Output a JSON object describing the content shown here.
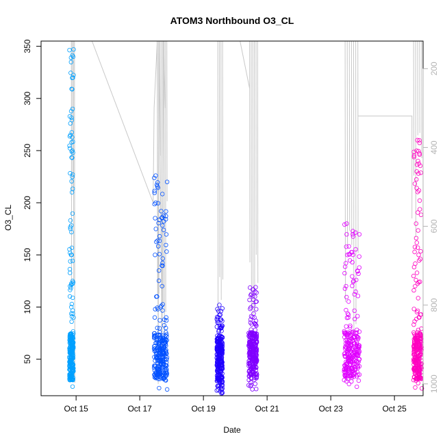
{
  "chart_data": {
    "type": "scatter",
    "title": "ATOM3 Northbound O3_CL",
    "xlabel": "Date",
    "ylabel": "O3_CL",
    "x_ticks": [
      "Oct 15",
      "Oct 17",
      "Oct 19",
      "Oct 21",
      "Oct 23",
      "Oct 25"
    ],
    "y_ticks": [
      50,
      100,
      150,
      200,
      250,
      300,
      350
    ],
    "ylim": [
      15,
      355
    ],
    "xlim_days_oct": [
      13.9,
      25.9
    ],
    "y2_ticks": [
      200,
      400,
      600,
      800,
      1000
    ],
    "y2lim_reversed": [
      130,
      1030
    ],
    "grid": false,
    "marker": "open-circle",
    "series": [
      {
        "color": "#00a0ff",
        "x_range": [
          "Oct 14 19:00",
          "Oct 14 22:00"
        ],
        "y_range": [
          20,
          347
        ],
        "points": [
          [
            14.79,
            40
          ],
          [
            14.8,
            60
          ],
          [
            14.81,
            120
          ],
          [
            14.82,
            175
          ],
          [
            14.8,
            30
          ],
          [
            14.84,
            55
          ],
          [
            14.85,
            100
          ],
          [
            14.86,
            150
          ],
          [
            14.87,
            210
          ],
          [
            14.88,
            250
          ],
          [
            14.89,
            290
          ],
          [
            14.9,
            320
          ],
          [
            14.91,
            340
          ],
          [
            14.92,
            347
          ],
          [
            14.87,
            45
          ],
          [
            14.9,
            30
          ],
          [
            14.92,
            90
          ]
        ]
      },
      {
        "color": "#0050ff",
        "x_range": [
          "Oct 17 11:00",
          "Oct 17 19:00"
        ],
        "y_range": [
          21,
          226
        ],
        "points": [
          [
            17.45,
            60
          ],
          [
            17.47,
            90
          ],
          [
            17.48,
            150
          ],
          [
            17.5,
            200
          ],
          [
            17.5,
            226
          ],
          [
            17.52,
            110
          ],
          [
            17.55,
            80
          ],
          [
            17.58,
            40
          ],
          [
            17.62,
            60
          ],
          [
            17.66,
            100
          ],
          [
            17.7,
            120
          ],
          [
            17.75,
            70
          ],
          [
            17.78,
            50
          ],
          [
            17.8,
            30
          ],
          [
            17.83,
            90
          ],
          [
            17.86,
            21
          ]
        ]
      },
      {
        "color": "#2000ff",
        "x_range": [
          "Oct 19 10:00",
          "Oct 19 14:00"
        ],
        "y_range": [
          17,
          102
        ],
        "points": [
          [
            19.42,
            20
          ],
          [
            19.44,
            40
          ],
          [
            19.46,
            60
          ],
          [
            19.48,
            85
          ],
          [
            19.5,
            102
          ],
          [
            19.52,
            70
          ],
          [
            19.54,
            50
          ],
          [
            19.56,
            30
          ],
          [
            19.58,
            45
          ],
          [
            19.6,
            25
          ]
        ]
      },
      {
        "color": "#8000ff",
        "x_range": [
          "Oct 20 10:00",
          "Oct 20 16:00"
        ],
        "y_range": [
          21,
          119
        ],
        "points": [
          [
            20.42,
            25
          ],
          [
            20.45,
            45
          ],
          [
            20.48,
            60
          ],
          [
            20.5,
            40
          ],
          [
            20.55,
            55
          ],
          [
            20.58,
            75
          ],
          [
            20.6,
            90
          ],
          [
            20.62,
            110
          ],
          [
            20.64,
            119
          ],
          [
            20.66,
            50
          ],
          [
            20.68,
            35
          ]
        ]
      },
      {
        "color": "#e000ff",
        "x_range": [
          "Oct 23 10:00",
          "Oct 23 22:00"
        ],
        "y_range": [
          22,
          180
        ],
        "points": [
          [
            23.42,
            30
          ],
          [
            23.45,
            60
          ],
          [
            23.48,
            120
          ],
          [
            23.5,
            180
          ],
          [
            23.52,
            150
          ],
          [
            23.55,
            90
          ],
          [
            23.6,
            45
          ],
          [
            23.65,
            70
          ],
          [
            23.7,
            60
          ],
          [
            23.75,
            40
          ],
          [
            23.8,
            55
          ],
          [
            23.85,
            35
          ],
          [
            23.9,
            50
          ]
        ]
      },
      {
        "color": "#ff00c0",
        "x_range": [
          "Oct 25 14:00",
          "Oct 25 23:00"
        ],
        "y_range": [
          21,
          260
        ],
        "points": [
          [
            25.6,
            30
          ],
          [
            25.62,
            60
          ],
          [
            25.65,
            120
          ],
          [
            25.68,
            180
          ],
          [
            25.7,
            230
          ],
          [
            25.72,
            260
          ],
          [
            25.74,
            240
          ],
          [
            25.76,
            150
          ],
          [
            25.78,
            90
          ],
          [
            25.8,
            40
          ],
          [
            25.83,
            60
          ],
          [
            25.86,
            22
          ]
        ]
      }
    ],
    "altitude_trace_color": "#c8c8c8"
  },
  "colors": {
    "axis": "#000000",
    "secondary_axis": "#b3b3b3",
    "trace": "#c8c8c8"
  }
}
